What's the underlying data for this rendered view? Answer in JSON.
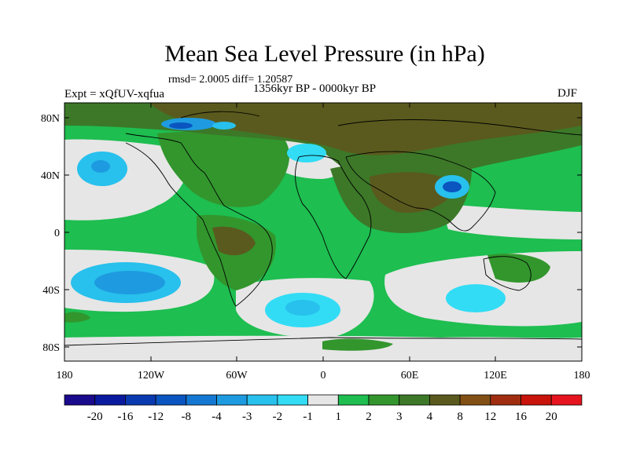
{
  "title": "Mean Sea Level Pressure (in hPa)",
  "stats": "rmsd= 2.0005 diff= 1.20587",
  "period": "1356kyr BP - 0000kyr BP",
  "experiment": "Expt = xQfUV-xqfua",
  "season": "DJF",
  "y_axis_labels": [
    "80N",
    "40N",
    "0",
    "40S",
    "80S"
  ],
  "x_axis_labels": [
    "180",
    "120W",
    "60W",
    "0",
    "60E",
    "120E",
    "180"
  ],
  "colorbar": {
    "levels": [
      "-20",
      "-16",
      "-12",
      "-8",
      "-4",
      "-3",
      "-2",
      "-1",
      "1",
      "2",
      "3",
      "4",
      "8",
      "12",
      "16",
      "20"
    ],
    "colors": [
      "#1a0a8c",
      "#0a1a9e",
      "#0a3ab0",
      "#0a55c0",
      "#1478d2",
      "#1e9be0",
      "#28c0ec",
      "#32dcf5",
      "#e6e6e6",
      "#1ebe50",
      "#32962d",
      "#3c7828",
      "#5a5a1e",
      "#825014",
      "#a02d0f",
      "#c8140a",
      "#e6141e"
    ]
  },
  "colors": {
    "land_outline": "#000000",
    "neutral": "#e6e6e6",
    "green": "#1ebe50",
    "dark_green": "#32962d",
    "olive": "#3c7828",
    "brown": "#5a5a1e"
  }
}
